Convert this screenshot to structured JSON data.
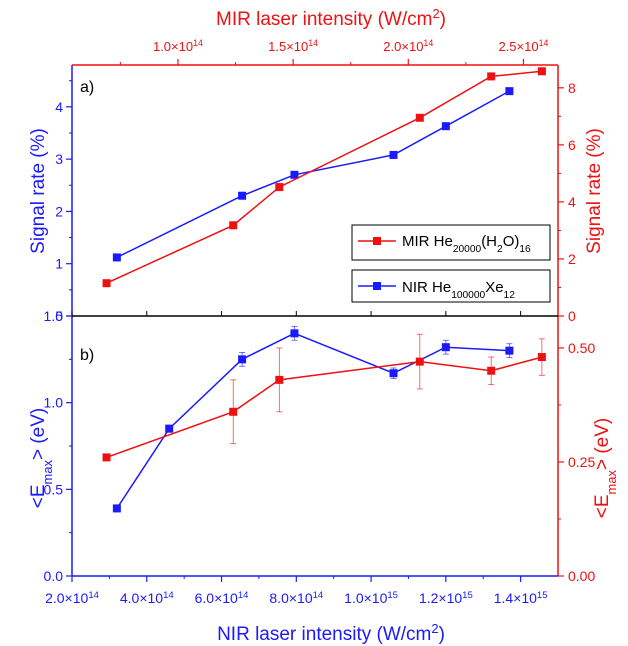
{
  "colors": {
    "blue": "#1a1aff",
    "red": "#ee1111",
    "black": "#000000"
  },
  "axes_text": {
    "top_title": "MIR laser intensity (W/cm²)",
    "bottom_title": "NIR laser intensity (W/cm²)",
    "left_top_title": "Signal rate (%)",
    "right_top_title": "Signal rate (%)",
    "left_bottom_title": "<Emax> (eV)",
    "right_bottom_title": "<Emax> (eV)",
    "panel_a": "a)",
    "panel_b": "b)"
  },
  "legend": {
    "mir_label": "MIR He20000(H2O)16",
    "nir_label": "NIR  He100000Xe12"
  },
  "chart_data": [
    {
      "panel": "a",
      "type": "line",
      "x_axis_bottom": {
        "label": "NIR laser intensity (W/cm²)",
        "lim": [
          200000000000000.0,
          1500000000000000.0
        ],
        "ticks": [
          200000000000000.0,
          400000000000000.0,
          600000000000000.0,
          800000000000000.0,
          1000000000000000.0,
          1200000000000000.0,
          1400000000000000.0
        ],
        "tick_labels": [
          "2.0×10¹⁴",
          "4.0×10¹⁴",
          "6.0×10¹⁴",
          "8.0×10¹⁴",
          "1.0×10¹⁵",
          "1.2×10¹⁵",
          "1.4×10¹⁵"
        ]
      },
      "x_axis_top": {
        "label": "MIR laser intensity (W/cm²)",
        "lim": [
          54000000000000.0,
          265000000000000.0
        ],
        "ticks": [
          100000000000000.0,
          150000000000000.0,
          200000000000000.0,
          250000000000000.0
        ],
        "tick_labels": [
          "1.0×10¹⁴",
          "1.5×10¹⁴",
          "2.0×10¹⁴",
          "2.5×10¹⁴"
        ]
      },
      "y_axis_left": {
        "label": "Signal rate (%)",
        "lim": [
          0,
          4.8
        ],
        "ticks": [
          0,
          1,
          2,
          3,
          4
        ]
      },
      "y_axis_right": {
        "label": "Signal rate (%)",
        "lim": [
          0,
          8.8
        ],
        "ticks": [
          0,
          2,
          4,
          6,
          8
        ]
      },
      "legend_position": "right",
      "series": [
        {
          "name": "NIR He100000Xe12",
          "color": "#1a1aff",
          "axis": "bottom-left",
          "x": [
            320000000000000.0,
            655000000000000.0,
            795000000000000.0,
            1060000000000000.0,
            1200000000000000.0,
            1370000000000000.0
          ],
          "y": [
            1.12,
            2.3,
            2.7,
            3.08,
            3.63,
            4.3
          ]
        },
        {
          "name": "MIR He20000(H2O)16",
          "color": "#ee1111",
          "axis": "top-right",
          "x": [
            69000000000000.0,
            124000000000000.0,
            144000000000000.0,
            205000000000000.0,
            236000000000000.0,
            258000000000000.0
          ],
          "y": [
            1.15,
            3.18,
            4.52,
            6.95,
            8.4,
            8.58
          ]
        }
      ]
    },
    {
      "panel": "b",
      "type": "line",
      "x_axis_bottom": {
        "label": "NIR laser intensity (W/cm²)",
        "lim": [
          200000000000000.0,
          1500000000000000.0
        ],
        "ticks": [
          200000000000000.0,
          400000000000000.0,
          600000000000000.0,
          800000000000000.0,
          1000000000000000.0,
          1200000000000000.0,
          1400000000000000.0
        ]
      },
      "x_axis_top": {
        "lim": [
          54000000000000.0,
          265000000000000.0
        ]
      },
      "y_axis_left": {
        "label": "<Emax> (eV)",
        "lim": [
          0,
          1.5
        ],
        "ticks": [
          0.0,
          0.5,
          1.0,
          1.5
        ],
        "tick_labels": [
          "0.0",
          "0.5",
          "1.0",
          "1.5"
        ]
      },
      "y_axis_right": {
        "label": "<Emax> (eV)",
        "lim": [
          0,
          0.57
        ],
        "ticks": [
          0.0,
          0.25,
          0.5
        ],
        "tick_labels": [
          "0.00",
          "0.25",
          "0.50"
        ]
      },
      "series": [
        {
          "name": "NIR He100000Xe12",
          "color": "#1a1aff",
          "axis": "bottom-left",
          "x": [
            320000000000000.0,
            460000000000000.0,
            655000000000000.0,
            795000000000000.0,
            1060000000000000.0,
            1200000000000000.0,
            1370000000000000.0
          ],
          "y": [
            0.39,
            0.85,
            1.25,
            1.4,
            1.17,
            1.32,
            1.3
          ],
          "err": [
            0.02,
            0.02,
            0.04,
            0.04,
            0.03,
            0.04,
            0.04
          ]
        },
        {
          "name": "MIR He20000(H2O)16",
          "color": "#ee1111",
          "axis": "top-right",
          "x": [
            69000000000000.0,
            124000000000000.0,
            144000000000000.0,
            205000000000000.0,
            236000000000000.0,
            258000000000000.0
          ],
          "y": [
            0.26,
            0.36,
            0.43,
            0.47,
            0.45,
            0.48
          ],
          "err": [
            0.0,
            0.07,
            0.07,
            0.06,
            0.03,
            0.04
          ]
        }
      ]
    }
  ]
}
